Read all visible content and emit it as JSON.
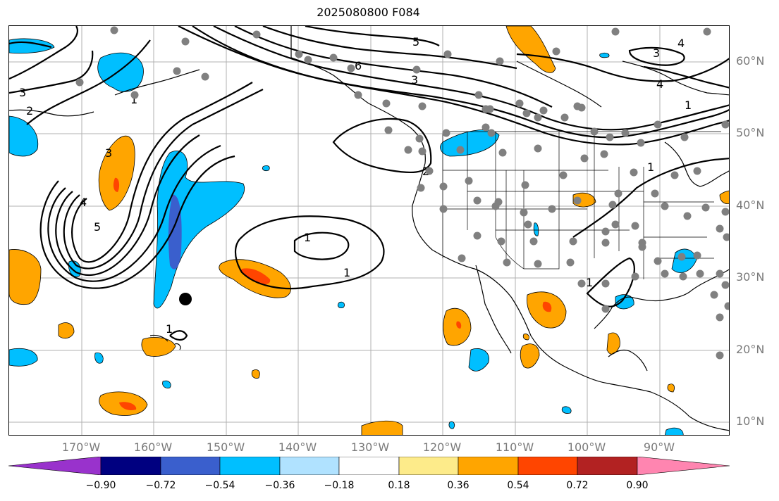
{
  "title": "2025080800 F084",
  "lat_labels": [
    "60°N",
    "50°N",
    "40°N",
    "30°N",
    "20°N",
    "10°N"
  ],
  "lon_labels": [
    "170°W",
    "160°W",
    "150°W",
    "140°W",
    "130°W",
    "120°W",
    "110°W",
    "100°W",
    "90°W"
  ],
  "colorbar": {
    "ticks": [
      "−0.90",
      "−0.72",
      "−0.54",
      "−0.36",
      "−0.18",
      "0.18",
      "0.36",
      "0.54",
      "0.72",
      "0.90"
    ],
    "colors": [
      "#9932cc",
      "#000080",
      "#3a5fcd",
      "#00bfff",
      "#b0e2ff",
      "#ffffff",
      "#fdeb8a",
      "#ffa500",
      "#ff4500",
      "#b22222",
      "#ff85b0"
    ]
  },
  "contour_labels": [
    "3",
    "2",
    "1",
    "3",
    "4",
    "5",
    "6",
    "5",
    "3",
    "3",
    "4",
    "4",
    "1",
    "1",
    "2",
    "1",
    "1",
    "1",
    "1"
  ],
  "shading_colors": {
    "light_blue": "#00bfff",
    "medium_blue": "#3a5fcd",
    "orange": "#ffa500",
    "red_orange": "#ff4500"
  }
}
